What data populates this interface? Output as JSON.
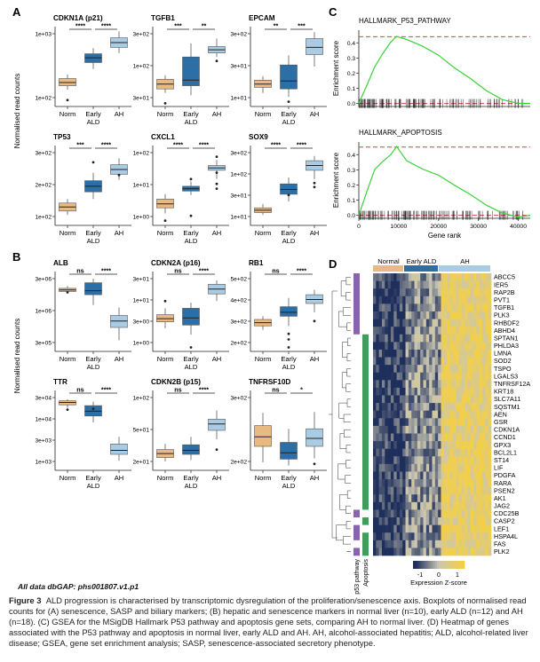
{
  "panels": {
    "A": {
      "letter": "A",
      "ylabel": "Normalised read counts",
      "groups": [
        "Norm",
        "Early ALD",
        "AH"
      ],
      "plots": [
        {
          "gene": "CDKN1A (p21)",
          "ticks": [
            "1e+03",
            "1e+02"
          ],
          "sig": [
            "****",
            "****"
          ],
          "boxes": [
            {
              "q1": 0.26,
              "med": 0.3,
              "q3": 0.35,
              "lo": 0.21,
              "hi": 0.4,
              "out": [
                0.08
              ]
            },
            {
              "q1": 0.55,
              "med": 0.61,
              "q3": 0.66,
              "lo": 0.47,
              "hi": 0.73,
              "out": []
            },
            {
              "q1": 0.74,
              "med": 0.8,
              "q3": 0.86,
              "lo": 0.67,
              "hi": 0.94,
              "out": []
            }
          ]
        },
        {
          "gene": "TGFB1",
          "ticks": [
            "3e+02",
            "1e+02",
            "3e+01"
          ],
          "sig": [
            "***",
            "**"
          ],
          "boxes": [
            {
              "q1": 0.22,
              "med": 0.28,
              "q3": 0.34,
              "lo": 0.17,
              "hi": 0.39,
              "out": [
                0.04
              ]
            },
            {
              "q1": 0.26,
              "med": 0.33,
              "q3": 0.62,
              "lo": 0.14,
              "hi": 0.79,
              "out": []
            },
            {
              "q1": 0.67,
              "med": 0.71,
              "q3": 0.75,
              "lo": 0.62,
              "hi": 0.85,
              "out": [
                0.57
              ]
            }
          ]
        },
        {
          "gene": "EPCAM",
          "ticks": [
            "3e+02",
            "3e+01",
            "1e+01"
          ],
          "sig": [
            "**",
            "***"
          ],
          "boxes": [
            {
              "q1": 0.24,
              "med": 0.28,
              "q3": 0.33,
              "lo": 0.17,
              "hi": 0.38,
              "out": []
            },
            {
              "q1": 0.22,
              "med": 0.32,
              "q3": 0.52,
              "lo": 0.12,
              "hi": 0.64,
              "out": [
                0.06
              ]
            },
            {
              "q1": 0.65,
              "med": 0.74,
              "q3": 0.85,
              "lo": 0.5,
              "hi": 0.93,
              "out": []
            }
          ]
        },
        {
          "gene": "TP53",
          "ticks": [
            "3e+02",
            "2e+02",
            "1e+02"
          ],
          "sig": [
            "***",
            "****"
          ],
          "boxes": [
            {
              "q1": 0.18,
              "med": 0.23,
              "q3": 0.28,
              "lo": 0.13,
              "hi": 0.33,
              "out": []
            },
            {
              "q1": 0.42,
              "med": 0.49,
              "q3": 0.56,
              "lo": 0.33,
              "hi": 0.66,
              "out": [
                0.79
              ]
            },
            {
              "q1": 0.64,
              "med": 0.7,
              "q3": 0.76,
              "lo": 0.57,
              "hi": 0.84,
              "out": [
                0.63
              ]
            }
          ]
        },
        {
          "gene": "CXCL1",
          "ticks": [
            "1e+02",
            "1e+01",
            "1e+00"
          ],
          "sig": [
            "****",
            "****"
          ],
          "boxes": [
            {
              "q1": 0.22,
              "med": 0.27,
              "q3": 0.33,
              "lo": 0.15,
              "hi": 0.39,
              "out": [
                0.06
              ]
            },
            {
              "q1": 0.43,
              "med": 0.46,
              "q3": 0.49,
              "lo": 0.38,
              "hi": 0.55,
              "out": [
                0.12,
                0.58
              ]
            },
            {
              "q1": 0.69,
              "med": 0.72,
              "q3": 0.75,
              "lo": 0.58,
              "hi": 0.82,
              "out": [
                0.46,
                0.52,
                0.66,
                0.86
              ]
            }
          ]
        },
        {
          "gene": "SOX9",
          "ticks": [
            "3e+02",
            "1e+02",
            "3e+01",
            "1e+01"
          ],
          "sig": [
            "****",
            "****"
          ],
          "boxes": [
            {
              "q1": 0.16,
              "med": 0.19,
              "q3": 0.22,
              "lo": 0.13,
              "hi": 0.27,
              "out": []
            },
            {
              "q1": 0.39,
              "med": 0.45,
              "q3": 0.52,
              "lo": 0.3,
              "hi": 0.6,
              "out": [
                0.38
              ]
            },
            {
              "q1": 0.69,
              "med": 0.75,
              "q3": 0.81,
              "lo": 0.58,
              "hi": 0.87,
              "out": [
                0.53,
                0.48
              ]
            }
          ]
        }
      ]
    },
    "B": {
      "letter": "B",
      "ylabel": "Normalised read counts",
      "groups": [
        "Norm",
        "Early ALD",
        "AH"
      ],
      "plots": [
        {
          "gene": "ALB",
          "ticks": [
            "3e+06",
            "1e+06",
            "3e+05"
          ],
          "sig": [
            "ns",
            "****"
          ],
          "boxes": [
            {
              "q1": 0.75,
              "med": 0.77,
              "q3": 0.79,
              "lo": 0.73,
              "hi": 0.82,
              "out": [
                0.74
              ]
            },
            {
              "q1": 0.71,
              "med": 0.76,
              "q3": 0.86,
              "lo": 0.58,
              "hi": 0.91,
              "out": []
            },
            {
              "q1": 0.3,
              "med": 0.38,
              "q3": 0.45,
              "lo": 0.14,
              "hi": 0.55,
              "out": []
            }
          ]
        },
        {
          "gene": "CDKN2A (p16)",
          "ticks": [
            "3e+01",
            "1e+01",
            "3e+00",
            "1e+00"
          ],
          "sig": [
            "ns",
            "****"
          ],
          "boxes": [
            {
              "q1": 0.37,
              "med": 0.41,
              "q3": 0.46,
              "lo": 0.29,
              "hi": 0.54,
              "out": [
                0.63
              ]
            },
            {
              "q1": 0.33,
              "med": 0.42,
              "q3": 0.54,
              "lo": 0.21,
              "hi": 0.61,
              "out": [
                0.05
              ]
            },
            {
              "q1": 0.72,
              "med": 0.78,
              "q3": 0.84,
              "lo": 0.63,
              "hi": 0.89,
              "out": []
            }
          ]
        },
        {
          "gene": "RB1",
          "ticks": [
            "5e+02",
            "4e+02",
            "3e+02",
            "2e+02"
          ],
          "sig": [
            "ns",
            "****"
          ],
          "boxes": [
            {
              "q1": 0.32,
              "med": 0.36,
              "q3": 0.4,
              "lo": 0.27,
              "hi": 0.44,
              "out": []
            },
            {
              "q1": 0.44,
              "med": 0.49,
              "q3": 0.56,
              "lo": 0.32,
              "hi": 0.67,
              "out": [
                0.22,
                0.15,
                0.05
              ]
            },
            {
              "q1": 0.6,
              "med": 0.65,
              "q3": 0.71,
              "lo": 0.49,
              "hi": 0.77,
              "out": [
                0.38
              ]
            }
          ]
        },
        {
          "gene": "TTR",
          "ticks": [
            "3e+04",
            "1e+04",
            "3e+03",
            "1e+03"
          ],
          "sig": [
            "ns",
            "****"
          ],
          "boxes": [
            {
              "q1": 0.82,
              "med": 0.85,
              "q3": 0.87,
              "lo": 0.78,
              "hi": 0.89,
              "out": [
                0.76
              ]
            },
            {
              "q1": 0.68,
              "med": 0.74,
              "q3": 0.81,
              "lo": 0.6,
              "hi": 0.86,
              "out": [
                0.77
              ]
            },
            {
              "q1": 0.2,
              "med": 0.25,
              "q3": 0.33,
              "lo": 0.12,
              "hi": 0.42,
              "out": []
            }
          ]
        },
        {
          "gene": "CDKN2B (p15)",
          "ticks": [
            "1e+02",
            "5e+01",
            "2e+01"
          ],
          "sig": [
            "ns",
            "****"
          ],
          "boxes": [
            {
              "q1": 0.16,
              "med": 0.21,
              "q3": 0.26,
              "lo": 0.11,
              "hi": 0.33,
              "out": []
            },
            {
              "q1": 0.2,
              "med": 0.25,
              "q3": 0.32,
              "lo": 0.13,
              "hi": 0.42,
              "out": []
            },
            {
              "q1": 0.5,
              "med": 0.58,
              "q3": 0.64,
              "lo": 0.39,
              "hi": 0.75,
              "out": [
                0.26
              ]
            }
          ]
        },
        {
          "gene": "TNFRSF10D",
          "ticks": [
            "3e+02",
            "2e+02"
          ],
          "sig": [
            "ns",
            "*"
          ],
          "boxes": [
            {
              "q1": 0.3,
              "med": 0.42,
              "q3": 0.56,
              "lo": 0.1,
              "hi": 0.72,
              "out": []
            },
            {
              "q1": 0.14,
              "med": 0.22,
              "q3": 0.35,
              "lo": 0.06,
              "hi": 0.52,
              "out": []
            },
            {
              "q1": 0.3,
              "med": 0.4,
              "q3": 0.52,
              "lo": 0.15,
              "hi": 0.73,
              "out": [
                0.08
              ]
            }
          ]
        }
      ]
    },
    "C": {
      "letter": "C",
      "ylabel": "Enrichment score",
      "xlabel": "Gene rank",
      "xticks": [
        "0",
        "10000",
        "20000",
        "30000",
        "40000"
      ],
      "yticks": [
        "0.4",
        "0.3",
        "0.2",
        "0.1",
        "0.0"
      ],
      "plots": [
        {
          "title": "HALLMARK_P53_PATHWAY",
          "peak": 0.44
        },
        {
          "title": "HALLMARK_APOPTOSIS",
          "peak": 0.45
        }
      ]
    },
    "D": {
      "letter": "D",
      "groups": [
        "Normal",
        "Early ALD",
        "AH"
      ],
      "genes": [
        "ABCC5",
        "IER5",
        "RAP2B",
        "PVT1",
        "TGFB1",
        "PLK3",
        "RHBDF2",
        "ABHD4",
        "SPTAN1",
        "PHLDA3",
        "LMNA",
        "SOD2",
        "TSPO",
        "LGALS3",
        "TNFRSF12A",
        "KRT18",
        "SLC7A11",
        "SQSTM1",
        "AEN",
        "GSR",
        "CDKN1A",
        "CCND1",
        "GPX3",
        "BCL2L1",
        "ST14",
        "LIF",
        "PDGFA",
        "RARA",
        "PSEN2",
        "AK1",
        "JAG2",
        "CDC25B",
        "CASP2",
        "LEF1",
        "HSPA4L",
        "FAS",
        "PLK2"
      ],
      "annotation_labels": [
        "p53 pathway",
        "Apoptosis"
      ],
      "legend_title": "Expression Z-score",
      "legend_ticks": [
        "-1",
        "0",
        "1"
      ]
    }
  },
  "chart_data": [
    {
      "type": "box",
      "panel": "A",
      "genes": [
        "CDKN1A (p21)",
        "TGFB1",
        "EPCAM",
        "TP53",
        "CXCL1",
        "SOX9"
      ],
      "categories": [
        "Norm",
        "Early ALD",
        "AH"
      ],
      "ylabel": "Normalised read counts",
      "scale": "log10",
      "significance": [
        [
          "****",
          "****"
        ],
        [
          "***",
          "**"
        ],
        [
          "**",
          "***"
        ],
        [
          "***",
          "****"
        ],
        [
          "****",
          "****"
        ],
        [
          "****",
          "****"
        ]
      ]
    },
    {
      "type": "box",
      "panel": "B",
      "genes": [
        "ALB",
        "CDKN2A (p16)",
        "RB1",
        "TTR",
        "CDKN2B (p15)",
        "TNFRSF10D"
      ],
      "categories": [
        "Norm",
        "Early ALD",
        "AH"
      ],
      "ylabel": "Normalised read counts",
      "scale": "log10",
      "significance": [
        [
          "ns",
          "****"
        ],
        [
          "ns",
          "****"
        ],
        [
          "ns",
          "****"
        ],
        [
          "ns",
          "****"
        ],
        [
          "ns",
          "****"
        ],
        [
          "ns",
          "*"
        ]
      ]
    },
    {
      "type": "line",
      "panel": "C",
      "title": "HALLMARK_P53_PATHWAY",
      "xlabel": "Gene rank",
      "ylabel": "Enrichment score",
      "xlim": [
        0,
        43000
      ],
      "ylim": [
        -0.02,
        0.46
      ],
      "x": [
        0,
        2000,
        4000,
        6000,
        8000,
        9500,
        12000,
        16000,
        20000,
        24000,
        28000,
        32000,
        36000,
        40000,
        43000
      ],
      "y": [
        0,
        0.12,
        0.24,
        0.33,
        0.4,
        0.44,
        0.42,
        0.38,
        0.32,
        0.24,
        0.16,
        0.09,
        0.03,
        0.005,
        0
      ]
    },
    {
      "type": "line",
      "panel": "C",
      "title": "HALLMARK_APOPTOSIS",
      "xlabel": "Gene rank",
      "ylabel": "Enrichment score",
      "xlim": [
        0,
        43000
      ],
      "ylim": [
        -0.02,
        0.46
      ],
      "x": [
        0,
        2000,
        4000,
        6000,
        8000,
        9500,
        12000,
        16000,
        20000,
        24000,
        28000,
        32000,
        36000,
        40000,
        43000
      ],
      "y": [
        0,
        0.15,
        0.3,
        0.35,
        0.4,
        0.45,
        0.36,
        0.31,
        0.26,
        0.2,
        0.14,
        0.07,
        0.02,
        -0.01,
        0
      ]
    },
    {
      "type": "heatmap",
      "panel": "D",
      "groups": [
        "Normal",
        "Early ALD",
        "AH"
      ],
      "rows": 37,
      "zlim": [
        -1,
        1
      ]
    }
  ],
  "db_note": "All data dbGAP: phs001807.v1.p1",
  "caption": {
    "label": "Figure 3",
    "text": "ALD progression is characterised by transcriptomic dysregulation of the proliferation/senescence axis. Boxplots of normalised read counts for (A) senescence, SASP and biliary markers; (B) hepatic and senescence markers in normal liver (n=10), early ALD (n=12) and AH (n=18). (C) GSEA for the MSigDB Hallmark P53 pathway and apoptosis gene sets, comparing AH to normal liver. (D) Heatmap of genes associated with the P53 pathway and apoptosis in normal liver, early ALD and AH. AH, alcohol-associated hepatitis; ALD, alcohol-related liver disease; GSEA, gene set enrichment analysis; SASP, senescence-associated secretory phenotype."
  },
  "colors": {
    "norm": "#e8b980",
    "early": "#2c6fa6",
    "ah": "#a9cbe3",
    "gsea": "#39d239",
    "red": "#d9453a",
    "hm_low": "#1f2f5c",
    "hm_mid": "#c9c6b3",
    "hm_high": "#f2cf4a",
    "anno_purple": "#8a63b0",
    "anno_green": "#3f9e5c"
  }
}
